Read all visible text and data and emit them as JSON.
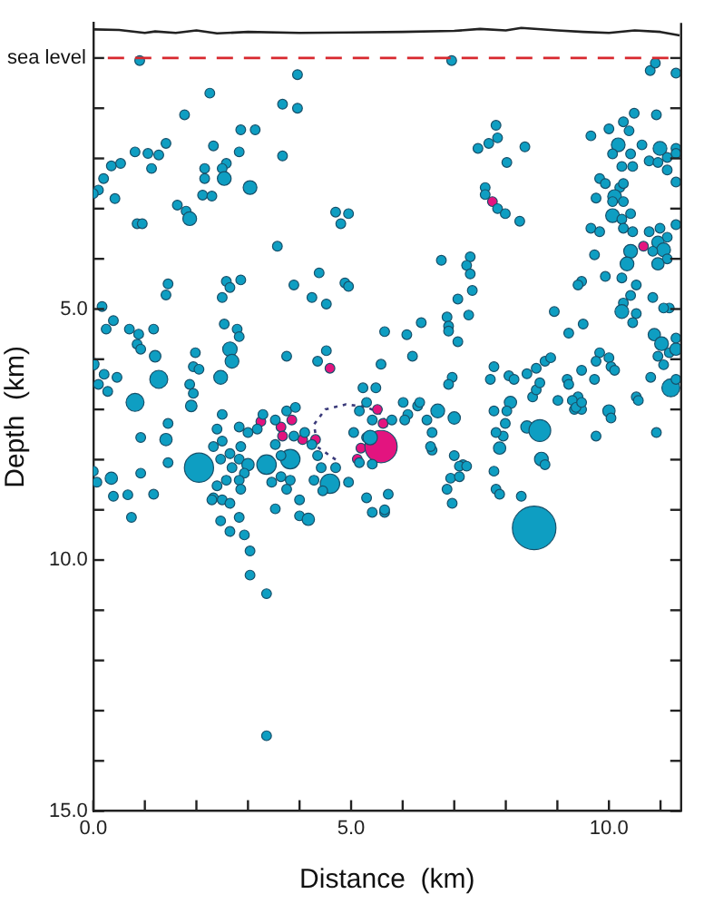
{
  "chart_data": {
    "type": "bubble",
    "xlabel": "Distance  (km)",
    "ylabel": "Depth  (km)",
    "xlim": [
      0,
      11.4
    ],
    "ylim": [
      15,
      -0.7
    ],
    "xticks": [
      {
        "value": 0,
        "label": "0.0"
      },
      {
        "value": 1,
        "label": null
      },
      {
        "value": 2,
        "label": null
      },
      {
        "value": 3,
        "label": null
      },
      {
        "value": 4,
        "label": null
      },
      {
        "value": 5,
        "label": "5.0"
      },
      {
        "value": 6,
        "label": null
      },
      {
        "value": 7,
        "label": null
      },
      {
        "value": 8,
        "label": null
      },
      {
        "value": 9,
        "label": null
      },
      {
        "value": 10,
        "label": "10.0"
      },
      {
        "value": 11,
        "label": null
      }
    ],
    "yticks": [
      {
        "value": 0,
        "label": null
      },
      {
        "value": 1,
        "label": null
      },
      {
        "value": 2,
        "label": null
      },
      {
        "value": 3,
        "label": null
      },
      {
        "value": 4,
        "label": null
      },
      {
        "value": 5,
        "label": "5.0"
      },
      {
        "value": 6,
        "label": null
      },
      {
        "value": 7,
        "label": null
      },
      {
        "value": 8,
        "label": null
      },
      {
        "value": 9,
        "label": null
      },
      {
        "value": 10,
        "label": "10.0"
      },
      {
        "value": 11,
        "label": null
      },
      {
        "value": 12,
        "label": null
      },
      {
        "value": 13,
        "label": null
      },
      {
        "value": 14,
        "label": null
      },
      {
        "value": 15,
        "label": "15.0"
      }
    ],
    "ref_lines": [
      {
        "axis": "y",
        "value": 0,
        "label": "sea level",
        "color": "#d8282e",
        "line_style": "dashed"
      }
    ],
    "series": [
      {
        "type": "line",
        "color": "#222222",
        "line_style": "solid",
        "x": [
          0,
          0.5,
          1,
          1.2,
          1.6,
          2,
          2.4,
          3,
          4,
          5,
          6,
          7,
          7.5,
          8,
          8.3,
          9,
          9.5,
          10,
          10.5,
          11,
          11.37
        ],
        "values": [
          -0.57,
          -0.56,
          -0.5,
          -0.53,
          -0.5,
          -0.55,
          -0.49,
          -0.52,
          -0.5,
          -0.51,
          -0.52,
          -0.54,
          -0.58,
          -0.55,
          -0.6,
          -0.55,
          -0.52,
          -0.5,
          -0.55,
          -0.52,
          -0.45
        ]
      },
      {
        "type": "line",
        "color": "#3a3a7a",
        "line_style": "dotted",
        "x": [
          4.7,
          4.35,
          4.28,
          4.5,
          4.9,
          5.3,
          5.6,
          5.7
        ],
        "values": [
          8.0,
          7.75,
          7.3,
          7.0,
          6.9,
          6.95,
          7.1,
          7.35
        ]
      },
      {
        "color": "#0e9ec2",
        "x": [
          0.9,
          6.95,
          10.8,
          10.9,
          11.3,
          3.96,
          2.26,
          3.67,
          3.96,
          1.77,
          2.86,
          3.14,
          1.41,
          2.33,
          0.81,
          1.06,
          1.27,
          2.83,
          3.67,
          2.58,
          2.5,
          2.16,
          0.35,
          0.2,
          1.13,
          0.53,
          2.54,
          3.04,
          2.16,
          0.1,
          0.0,
          0.42,
          2.12,
          2.3,
          1.63,
          1.8,
          1.87,
          0.85,
          0.95,
          4.7,
          4.95,
          4.8,
          3.57,
          1.45,
          1.41,
          2.58,
          2.65,
          2.5,
          2.86,
          3.89,
          4.38,
          4.24,
          4.52,
          4.88,
          4.95,
          0.17,
          0.39,
          0.25,
          0.7,
          0.88,
          0.85,
          0.92,
          1.17,
          2.54,
          2.79,
          2.83,
          2.65,
          1.2,
          1.98,
          1.94,
          2.05,
          2.69,
          1.27,
          2.47,
          0.0,
          0.21,
          0.1,
          0.46,
          0.28,
          3.75,
          4.35,
          4.52,
          5.65,
          5.58,
          0.81,
          1.87,
          1.94,
          1.9,
          0.92,
          1.41,
          1.45,
          0.35,
          0.0,
          0.07,
          0.92,
          0.39,
          0.67,
          0.74,
          1.17,
          1.45,
          2.05,
          2.4,
          2.5,
          2.33,
          2.65,
          2.47,
          2.69,
          2.58,
          2.4,
          2.33,
          2.5,
          2.3,
          2.86,
          2.83,
          3.0,
          2.93,
          2.83,
          2.86,
          2.65,
          2.47,
          2.65,
          2.93,
          3.04,
          3.04,
          3.36,
          3.36,
          2.83,
          2.5,
          2.83,
          3.0,
          3.18,
          3.36,
          3.82,
          3.53,
          3.64,
          3.64,
          3.46,
          3.82,
          3.75,
          3.53,
          4.0,
          4.0,
          4.17,
          3.29,
          3.53,
          3.75,
          3.92,
          3.89,
          4.1,
          4.24,
          4.35,
          4.42,
          4.59,
          4.28,
          4.45,
          4.7,
          4.95,
          5.23,
          5.48,
          5.3,
          5.16,
          5.41,
          5.05,
          5.3,
          5.16,
          5.41,
          5.3,
          5.41,
          5.65,
          5.37,
          7.81,
          7.84,
          7.67,
          7.46,
          8.37,
          8.02,
          7.6,
          7.6,
          7.84,
          7.99,
          8.27,
          6.75,
          7.31,
          7.24,
          7.31,
          7.35,
          7.07,
          7.28,
          6.86,
          6.89,
          6.89,
          7.07,
          6.36,
          6.08,
          6.19,
          8.94,
          9.22,
          9.5,
          9.65,
          10.0,
          10.28,
          10.49,
          10.92,
          10.39,
          10.18,
          10.07,
          10.25,
          10.42,
          10.64,
          10.78,
          10.46,
          10.99,
          11.13,
          10.95,
          11.13,
          11.3,
          11.3,
          11.3,
          9.82,
          9.93,
          10.21,
          10.28,
          10.11,
          9.75,
          10.07,
          10.28,
          10.07,
          10.25,
          10.42,
          9.65,
          9.82,
          10.28,
          10.46,
          10.78,
          10.99,
          11.13,
          11.3,
          10.42,
          10.35,
          10.25,
          9.72,
          9.47,
          9.4,
          9.93,
          10.53,
          10.95,
          11.06,
          11.13,
          10.95,
          10.85,
          10.42,
          10.28,
          10.25,
          10.53,
          10.46,
          10.85,
          11.17,
          11.06,
          10.88,
          11.02,
          11.17,
          11.3,
          11.3,
          10.95,
          11.06,
          11.2,
          11.3,
          10.81,
          10.53,
          9.82,
          10.0,
          10.04,
          9.75,
          10.11,
          9.47,
          9.19,
          9.22,
          9.72,
          9.4,
          9.33,
          9.47,
          8.76,
          8.59,
          8.41,
          8.87,
          7.77,
          7.7,
          8.06,
          8.16,
          8.52,
          8.59,
          8.66,
          8.09,
          8.02,
          7.99,
          7.95,
          8.41,
          8.66,
          9.01,
          9.29,
          9.36,
          9.47,
          10.0,
          10.04,
          9.75,
          10.57,
          10.92,
          6.68,
          7.0,
          6.57,
          6.57,
          6.29,
          6.1,
          6.04,
          5.79,
          6.96,
          6.89,
          7.77,
          7.81,
          7.88,
          7.0,
          7.17,
          8.69,
          8.76,
          7.77,
          7.81,
          7.88,
          8.3,
          6.86,
          6.96,
          7.1,
          7.24,
          6.93,
          7.1,
          5.72,
          5.65,
          8.55,
          6.01,
          6.33,
          6.47,
          6.54
        ],
        "values": [
          0.05,
          0.05,
          0.25,
          0.1,
          0.3,
          0.33,
          0.7,
          0.92,
          1.0,
          1.13,
          1.43,
          1.43,
          1.7,
          1.75,
          1.87,
          1.9,
          1.93,
          1.87,
          1.95,
          2.1,
          2.2,
          2.2,
          2.15,
          2.4,
          2.2,
          2.1,
          2.4,
          2.58,
          2.4,
          2.63,
          2.7,
          2.8,
          2.73,
          2.75,
          2.93,
          3.05,
          3.2,
          3.3,
          3.3,
          3.07,
          3.1,
          3.3,
          3.75,
          4.5,
          4.72,
          4.45,
          4.57,
          4.77,
          4.42,
          4.52,
          4.28,
          4.77,
          4.9,
          4.48,
          4.55,
          4.95,
          5.23,
          5.4,
          5.4,
          5.5,
          5.7,
          5.8,
          5.4,
          5.3,
          5.4,
          5.55,
          5.8,
          5.94,
          5.87,
          6.15,
          6.2,
          6.04,
          6.4,
          6.36,
          6.1,
          6.3,
          6.5,
          6.36,
          6.64,
          5.94,
          6.04,
          5.83,
          5.45,
          6.1,
          6.86,
          6.5,
          6.68,
          6.93,
          7.56,
          7.6,
          7.28,
          8.37,
          8.23,
          8.45,
          8.27,
          8.73,
          8.7,
          9.15,
          8.69,
          8.06,
          8.16,
          7.39,
          7.63,
          7.74,
          7.88,
          7.99,
          8.16,
          8.41,
          8.52,
          8.76,
          8.8,
          8.8,
          7.74,
          7.99,
          8.1,
          8.27,
          8.41,
          8.59,
          8.87,
          9.22,
          9.43,
          9.5,
          9.82,
          10.3,
          10.67,
          13.5,
          9.15,
          7.1,
          7.35,
          7.46,
          7.39,
          8.1,
          7.99,
          7.7,
          7.92,
          8.34,
          8.45,
          8.41,
          8.59,
          8.98,
          8.8,
          9.12,
          9.19,
          7.1,
          7.21,
          7.03,
          6.96,
          7.53,
          7.46,
          7.7,
          7.92,
          8.16,
          8.48,
          8.41,
          8.62,
          8.16,
          8.45,
          6.57,
          6.57,
          6.86,
          7.03,
          7.21,
          7.46,
          7.56,
          8.06,
          8.09,
          8.76,
          9.05,
          9.05,
          7.56,
          1.34,
          1.59,
          1.7,
          1.8,
          1.77,
          2.08,
          2.58,
          2.72,
          3.0,
          3.1,
          3.25,
          4.03,
          3.96,
          4.13,
          4.3,
          4.63,
          4.8,
          5.12,
          5.16,
          5.34,
          5.44,
          5.65,
          5.27,
          5.51,
          5.94,
          5.05,
          5.48,
          5.3,
          1.55,
          1.41,
          1.27,
          1.1,
          1.13,
          1.45,
          1.73,
          1.91,
          2.16,
          1.91,
          1.73,
          2.05,
          2.16,
          1.8,
          1.98,
          2.08,
          2.23,
          1.8,
          1.9,
          2.47,
          2.4,
          2.5,
          2.58,
          2.5,
          2.76,
          2.79,
          2.86,
          2.86,
          3.14,
          3.21,
          3.1,
          3.39,
          3.46,
          3.39,
          3.46,
          3.46,
          3.39,
          3.57,
          3.32,
          3.85,
          4.1,
          4.38,
          3.92,
          4.45,
          4.52,
          4.35,
          4.52,
          3.67,
          3.82,
          4.0,
          4.1,
          3.85,
          4.73,
          4.88,
          5.05,
          5.09,
          5.27,
          4.77,
          4.98,
          4.98,
          5.51,
          5.69,
          5.87,
          5.8,
          5.58,
          5.94,
          6.11,
          6.57,
          6.4,
          6.36,
          6.75,
          5.87,
          5.97,
          6.15,
          6.04,
          6.22,
          6.22,
          6.4,
          6.5,
          6.4,
          6.75,
          7.0,
          7.0,
          6.04,
          6.18,
          6.29,
          5.97,
          6.15,
          6.4,
          6.33,
          6.4,
          6.75,
          6.61,
          6.47,
          6.86,
          7.03,
          7.28,
          7.53,
          7.35,
          7.42,
          6.82,
          6.82,
          6.96,
          6.86,
          7.03,
          7.17,
          7.53,
          6.82,
          7.46,
          7.03,
          7.17,
          7.46,
          7.81,
          6.93,
          7.1,
          7.21,
          7.21,
          6.36,
          6.5,
          7.03,
          7.46,
          7.77,
          7.92,
          8.1,
          7.99,
          8.1,
          8.23,
          8.59,
          8.69,
          8.73,
          8.59,
          8.87,
          8.13,
          8.13,
          8.37,
          8.34,
          8.69,
          9.0,
          9.36,
          6.86,
          6.86,
          7.21,
          7.74
        ],
        "sizes": [
          0.05,
          0.05,
          0.05,
          0.05,
          0.05,
          0.05,
          0.05,
          0.05,
          0.05,
          0.05,
          0.05,
          0.05,
          0.05,
          0.05,
          0.05,
          0.05,
          0.05,
          0.05,
          0.05,
          0.05,
          0.05,
          0.05,
          0.05,
          0.05,
          0.05,
          0.05,
          0.1,
          0.1,
          0.05,
          0.05,
          0.05,
          0.05,
          0.05,
          0.05,
          0.05,
          0.05,
          0.1,
          0.05,
          0.05,
          0.05,
          0.05,
          0.05,
          0.05,
          0.05,
          0.05,
          0.05,
          0.05,
          0.05,
          0.05,
          0.05,
          0.05,
          0.05,
          0.05,
          0.05,
          0.05,
          0.05,
          0.05,
          0.05,
          0.05,
          0.05,
          0.05,
          0.05,
          0.05,
          0.05,
          0.05,
          0.05,
          0.11,
          0.07,
          0.05,
          0.05,
          0.05,
          0.1,
          0.17,
          0.1,
          0.07,
          0.05,
          0.05,
          0.05,
          0.05,
          0.05,
          0.05,
          0.05,
          0.05,
          0.05,
          0.17,
          0.05,
          0.05,
          0.07,
          0.05,
          0.08,
          0.05,
          0.08,
          0.05,
          0.05,
          0.05,
          0.05,
          0.05,
          0.05,
          0.05,
          0.05,
          0.45,
          0.05,
          0.05,
          0.05,
          0.05,
          0.05,
          0.05,
          0.05,
          0.05,
          0.05,
          0.05,
          0.05,
          0.05,
          0.05,
          0.08,
          0.05,
          0.05,
          0.05,
          0.05,
          0.05,
          0.05,
          0.05,
          0.05,
          0.05,
          0.05,
          0.05,
          0.05,
          0.05,
          0.05,
          0.05,
          0.05,
          0.2,
          0.2,
          0.05,
          0.05,
          0.05,
          0.05,
          0.05,
          0.05,
          0.05,
          0.05,
          0.05,
          0.08,
          0.05,
          0.05,
          0.05,
          0.05,
          0.05,
          0.05,
          0.05,
          0.05,
          0.05,
          0.2,
          0.05,
          0.05,
          0.05,
          0.05,
          0.05,
          0.05,
          0.05,
          0.05,
          0.05,
          0.05,
          0.05,
          0.05,
          0.05,
          0.05,
          0.05,
          0.05,
          0.11,
          0.05,
          0.05,
          0.05,
          0.05,
          0.05,
          0.05,
          0.05,
          0.05,
          0.05,
          0.05,
          0.05,
          0.05,
          0.05,
          0.05,
          0.05,
          0.05,
          0.05,
          0.05,
          0.05,
          0.05,
          0.05,
          0.05,
          0.05,
          0.05,
          0.05,
          0.05,
          0.05,
          0.05,
          0.05,
          0.05,
          0.05,
          0.05,
          0.05,
          0.05,
          0.1,
          0.05,
          0.05,
          0.05,
          0.05,
          0.05,
          0.05,
          0.1,
          0.05,
          0.05,
          0.05,
          0.05,
          0.05,
          0.05,
          0.05,
          0.05,
          0.05,
          0.05,
          0.1,
          0.05,
          0.05,
          0.05,
          0.1,
          0.05,
          0.05,
          0.05,
          0.05,
          0.05,
          0.05,
          0.05,
          0.05,
          0.05,
          0.05,
          0.1,
          0.1,
          0.05,
          0.05,
          0.05,
          0.05,
          0.05,
          0.05,
          0.08,
          0.1,
          0.05,
          0.08,
          0.05,
          0.05,
          0.05,
          0.1,
          0.05,
          0.05,
          0.05,
          0.05,
          0.05,
          0.08,
          0.1,
          0.05,
          0.08,
          0.05,
          0.05,
          0.05,
          0.17,
          0.05,
          0.05,
          0.05,
          0.05,
          0.05,
          0.05,
          0.05,
          0.05,
          0.05,
          0.05,
          0.05,
          0.05,
          0.05,
          0.05,
          0.05,
          0.05,
          0.05,
          0.05,
          0.05,
          0.05,
          0.05,
          0.05,
          0.05,
          0.05,
          0.05,
          0.05,
          0.08,
          0.05,
          0.05,
          0.05,
          0.08,
          0.25,
          0.05,
          0.05,
          0.05,
          0.05,
          0.08,
          0.05,
          0.05,
          0.05,
          0.05,
          0.1,
          0.08,
          0.05,
          0.05,
          0.05,
          0.05,
          0.05,
          0.05,
          0.05,
          0.05,
          0.05,
          0.05,
          0.08,
          0.05,
          0.05,
          0.1,
          0.05,
          0.05,
          0.05,
          0.05,
          0.05,
          0.05,
          0.05,
          0.05,
          0.05,
          0.05,
          0.05,
          0.05,
          0.05,
          1,
          0.05,
          0.05,
          0.05,
          0.05
        ]
      },
      {
        "color": "#e3147f",
        "x": [
          3.25,
          3.64,
          3.85,
          3.67,
          4.06,
          4.31,
          4.59,
          5.12,
          5.19,
          5.51,
          5.62,
          5.58,
          7.74,
          10.67
        ],
        "values": [
          7.24,
          7.35,
          7.21,
          7.53,
          7.6,
          7.6,
          6.18,
          7.99,
          7.77,
          7.0,
          7.28,
          7.74,
          2.86,
          3.75
        ],
        "sizes": [
          0.05,
          0.05,
          0.05,
          0.05,
          0.05,
          0.05,
          0.05,
          0.05,
          0.05,
          0.05,
          0.05,
          0.55,
          0.05,
          0.05
        ]
      }
    ]
  }
}
